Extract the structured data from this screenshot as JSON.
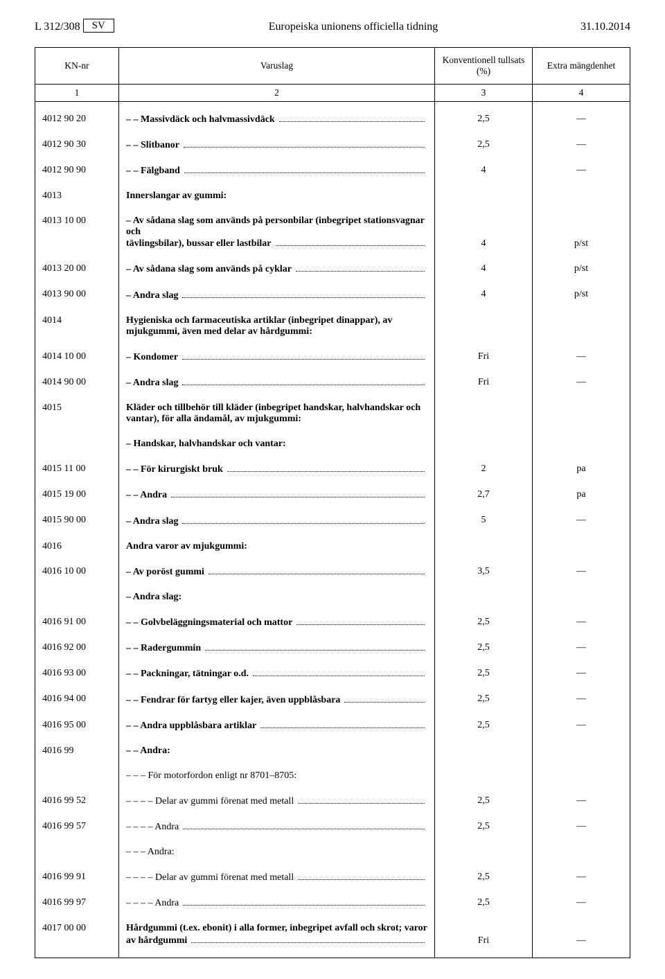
{
  "header": {
    "left": "L 312/308",
    "sv": "SV",
    "center": "Europeiska unionens officiella tidning",
    "right": "31.10.2014"
  },
  "table": {
    "head": {
      "c1": "KN-nr",
      "c2": "Varuslag",
      "c3": "Konventionell tullsats (%)",
      "c4": "Extra mängdenhet"
    },
    "sub": {
      "c1": "1",
      "c2": "2",
      "c3": "3",
      "c4": "4"
    }
  },
  "rows": [
    {
      "code": "4012 90 20",
      "indent": 0,
      "text": "– – Massivdäck och halvmassivdäck",
      "dots": true,
      "bold": true,
      "duty": "2,5",
      "unit": "—"
    },
    {
      "code": "4012 90 30",
      "indent": 0,
      "text": "– – Slitbanor",
      "dots": true,
      "bold": true,
      "duty": "2,5",
      "unit": "—"
    },
    {
      "code": "4012 90 90",
      "indent": 0,
      "text": "– – Fälgband",
      "dots": true,
      "bold": true,
      "duty": "4",
      "unit": "—"
    },
    {
      "code": "4013",
      "indent": 0,
      "text": "Innerslangar av gummi:",
      "dots": false,
      "bold": true,
      "duty": "",
      "unit": ""
    },
    {
      "code": "4013 10 00",
      "indent": 0,
      "text": "– Av sådana slag som används på personbilar (inbegripet stationsvagnar och tävlingsbilar), bussar eller lastbilar",
      "dots": true,
      "bold": true,
      "duty": "4",
      "unit": "p/st",
      "wrap": true
    },
    {
      "code": "4013 20 00",
      "indent": 0,
      "text": "– Av sådana slag som används på cyklar",
      "dots": true,
      "bold": true,
      "duty": "4",
      "unit": "p/st"
    },
    {
      "code": "4013 90 00",
      "indent": 0,
      "text": "– Andra slag",
      "dots": true,
      "bold": true,
      "duty": "4",
      "unit": "p/st"
    },
    {
      "code": "4014",
      "indent": 0,
      "text": "Hygieniska och farmaceutiska artiklar (inbegripet dinappar), av mjukgummi, även med delar av hårdgummi:",
      "dots": false,
      "bold": true,
      "duty": "",
      "unit": "",
      "wrap": true
    },
    {
      "code": "4014 10 00",
      "indent": 0,
      "text": "– Kondomer",
      "dots": true,
      "bold": true,
      "duty": "Fri",
      "unit": "—"
    },
    {
      "code": "4014 90 00",
      "indent": 0,
      "text": "– Andra slag",
      "dots": true,
      "bold": true,
      "duty": "Fri",
      "unit": "—"
    },
    {
      "code": "4015",
      "indent": 0,
      "text": "Kläder och tillbehör till kläder (inbegripet handskar, halvhandskar och vantar), för alla ändamål, av mjukgummi:",
      "dots": false,
      "bold": true,
      "duty": "",
      "unit": "",
      "wrap": true
    },
    {
      "code": "",
      "indent": 0,
      "text": "– Handskar, halvhandskar och vantar:",
      "dots": false,
      "bold": true,
      "duty": "",
      "unit": ""
    },
    {
      "code": "4015 11 00",
      "indent": 0,
      "text": "– – För kirurgiskt bruk",
      "dots": true,
      "bold": true,
      "duty": "2",
      "unit": "pa"
    },
    {
      "code": "4015 19 00",
      "indent": 0,
      "text": "– – Andra",
      "dots": true,
      "bold": true,
      "duty": "2,7",
      "unit": "pa"
    },
    {
      "code": "4015 90 00",
      "indent": 0,
      "text": "– Andra slag",
      "dots": true,
      "bold": true,
      "duty": "5",
      "unit": "—"
    },
    {
      "code": "4016",
      "indent": 0,
      "text": "Andra varor av mjukgummi:",
      "dots": false,
      "bold": true,
      "duty": "",
      "unit": ""
    },
    {
      "code": "4016 10 00",
      "indent": 0,
      "text": "– Av poröst gummi",
      "dots": true,
      "bold": true,
      "duty": "3,5",
      "unit": "—"
    },
    {
      "code": "",
      "indent": 0,
      "text": "– Andra slag:",
      "dots": false,
      "bold": true,
      "duty": "",
      "unit": ""
    },
    {
      "code": "4016 91 00",
      "indent": 0,
      "text": "– – Golvbeläggningsmaterial och mattor",
      "dots": true,
      "bold": true,
      "duty": "2,5",
      "unit": "—"
    },
    {
      "code": "4016 92 00",
      "indent": 0,
      "text": "– – Radergummin",
      "dots": true,
      "bold": true,
      "duty": "2,5",
      "unit": "—"
    },
    {
      "code": "4016 93 00",
      "indent": 0,
      "text": "– – Packningar, tätningar o.d.",
      "dots": true,
      "bold": true,
      "duty": "2,5",
      "unit": "—"
    },
    {
      "code": "4016 94 00",
      "indent": 0,
      "text": "– – Fendrar för fartyg eller kajer, även uppblåsbara",
      "dots": true,
      "bold": true,
      "duty": "2,5",
      "unit": "—"
    },
    {
      "code": "4016 95 00",
      "indent": 0,
      "text": "– – Andra uppblåsbara artiklar",
      "dots": true,
      "bold": true,
      "duty": "2,5",
      "unit": "—"
    },
    {
      "code": "4016 99",
      "indent": 0,
      "text": "– – Andra:",
      "dots": false,
      "bold": true,
      "duty": "",
      "unit": ""
    },
    {
      "code": "",
      "indent": 0,
      "text": "– – – För motorfordon enligt nr 8701–8705:",
      "dots": false,
      "bold": false,
      "duty": "",
      "unit": ""
    },
    {
      "code": "4016 99 52",
      "indent": 0,
      "text": "– – – – Delar av gummi förenat med metall",
      "dots": true,
      "bold": false,
      "duty": "2,5",
      "unit": "—"
    },
    {
      "code": "4016 99 57",
      "indent": 0,
      "text": "– – – – Andra",
      "dots": true,
      "bold": false,
      "duty": "2,5",
      "unit": "—"
    },
    {
      "code": "",
      "indent": 0,
      "text": "– – – Andra:",
      "dots": false,
      "bold": false,
      "duty": "",
      "unit": ""
    },
    {
      "code": "4016 99 91",
      "indent": 0,
      "text": "– – – – Delar av gummi förenat med metall",
      "dots": true,
      "bold": false,
      "duty": "2,5",
      "unit": "—"
    },
    {
      "code": "4016 99 97",
      "indent": 0,
      "text": "– – – – Andra",
      "dots": true,
      "bold": false,
      "duty": "2,5",
      "unit": "—"
    },
    {
      "code": "4017 00 00",
      "indent": 0,
      "text": "Hårdgummi (t.ex. ebonit) i alla former, inbegripet avfall och skrot; varor av hårdgummi",
      "dots": true,
      "bold": true,
      "duty": "Fri",
      "unit": "—",
      "wrap": true
    }
  ]
}
